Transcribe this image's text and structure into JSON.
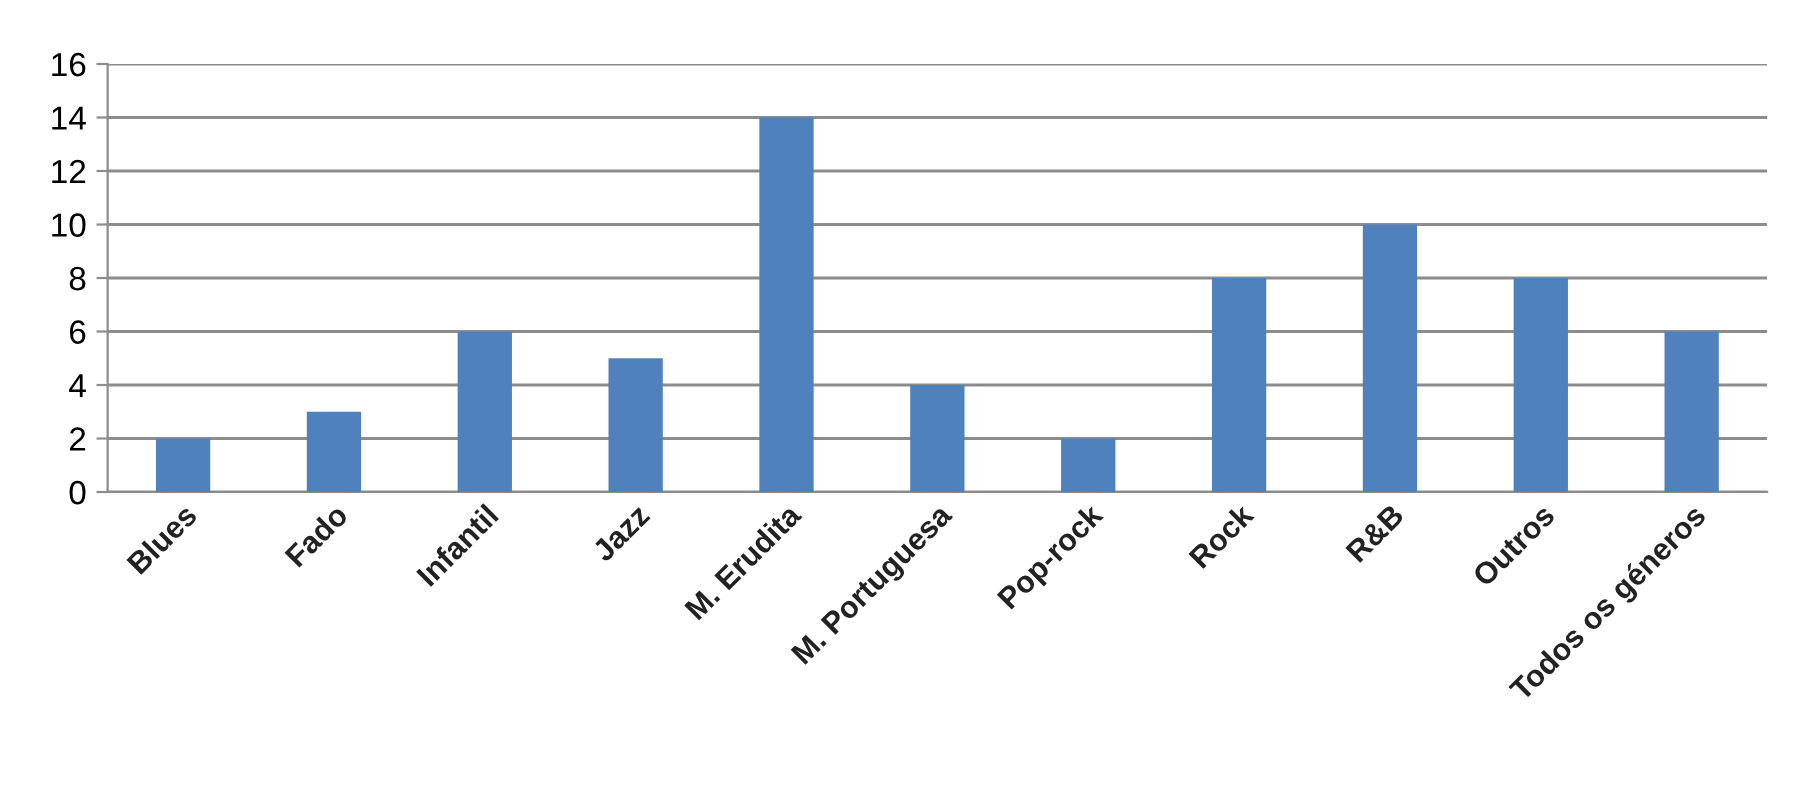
{
  "chart_data": {
    "type": "bar",
    "categories": [
      "Blues",
      "Fado",
      "Infantil",
      "Jazz",
      "M. Erudita",
      "M. Portuguesa",
      "Pop-rock",
      "Rock",
      "R&B",
      "Outros",
      "Todos os géneros"
    ],
    "values": [
      2,
      3,
      6,
      5,
      14,
      4,
      2,
      8,
      10,
      8,
      6
    ],
    "color": "#4f81bd",
    "ylim": [
      0,
      16
    ],
    "yticks": [
      0,
      2,
      4,
      6,
      8,
      10,
      12,
      14,
      16
    ],
    "grid": "y"
  }
}
